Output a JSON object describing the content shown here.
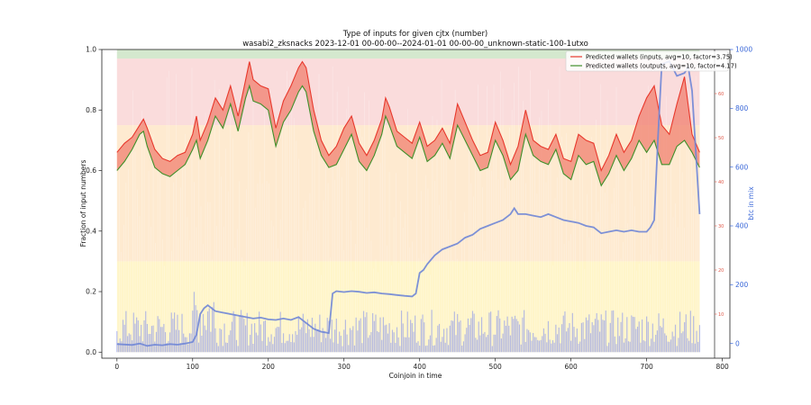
{
  "chart_data": {
    "type": "line",
    "title": "Type of inputs for given cjtx (number)",
    "subtitle": "wasabi2_zksnacks 2023-12-01 00-00-00--2024-01-01 00-00-00_unknown-static-100-1utxo",
    "xlabel": "Coinjoin in time",
    "ylabel": "Fraction of input numbers",
    "y2label": "btc in mix",
    "xlim": [
      -20,
      810
    ],
    "ylim": [
      -0.02,
      1.0
    ],
    "y2lim": [
      -50,
      1000
    ],
    "midlim": [
      0,
      70
    ],
    "x_ticks": [
      0,
      100,
      200,
      300,
      400,
      500,
      600,
      700,
      800
    ],
    "y_ticks": [
      0.0,
      0.2,
      0.4,
      0.6,
      0.8,
      1.0
    ],
    "y2_ticks": [
      0,
      200,
      400,
      600,
      800,
      1000
    ],
    "mid_ticks": [
      10,
      20,
      30,
      40,
      50,
      60
    ],
    "grid": false,
    "legend_position": "top-right",
    "series": [
      {
        "name": "Predicted wallets (inputs, avg=10, factor=3.75)",
        "color": "#e8382c",
        "axis": "left",
        "x": [
          0,
          10,
          20,
          30,
          35,
          40,
          50,
          60,
          70,
          80,
          90,
          100,
          105,
          110,
          120,
          130,
          140,
          150,
          160,
          170,
          175,
          180,
          190,
          200,
          210,
          220,
          230,
          240,
          245,
          250,
          260,
          270,
          280,
          290,
          300,
          310,
          320,
          330,
          340,
          350,
          355,
          360,
          370,
          380,
          390,
          400,
          410,
          420,
          430,
          440,
          450,
          460,
          470,
          480,
          490,
          500,
          510,
          520,
          530,
          540,
          550,
          560,
          570,
          580,
          590,
          600,
          610,
          620,
          630,
          640,
          650,
          660,
          670,
          680,
          690,
          700,
          710,
          720,
          730,
          740,
          750,
          760,
          770
        ],
        "values": [
          0.66,
          0.69,
          0.71,
          0.75,
          0.77,
          0.74,
          0.67,
          0.64,
          0.63,
          0.65,
          0.66,
          0.72,
          0.78,
          0.7,
          0.76,
          0.84,
          0.8,
          0.88,
          0.78,
          0.9,
          0.96,
          0.9,
          0.88,
          0.87,
          0.74,
          0.83,
          0.88,
          0.94,
          0.96,
          0.94,
          0.8,
          0.7,
          0.65,
          0.68,
          0.74,
          0.78,
          0.69,
          0.65,
          0.7,
          0.77,
          0.84,
          0.81,
          0.73,
          0.71,
          0.69,
          0.76,
          0.68,
          0.7,
          0.74,
          0.69,
          0.82,
          0.76,
          0.7,
          0.65,
          0.66,
          0.76,
          0.7,
          0.62,
          0.68,
          0.8,
          0.7,
          0.68,
          0.67,
          0.72,
          0.64,
          0.63,
          0.72,
          0.7,
          0.69,
          0.6,
          0.65,
          0.72,
          0.66,
          0.7,
          0.78,
          0.84,
          0.88,
          0.75,
          0.72,
          0.82,
          0.91,
          0.72,
          0.66
        ]
      },
      {
        "name": "Predicted wallets (outputs, avg=10, factor=4.17)",
        "color": "#3f8f2a",
        "axis": "left",
        "x": [
          0,
          10,
          20,
          30,
          35,
          40,
          50,
          60,
          70,
          80,
          90,
          100,
          105,
          110,
          120,
          130,
          140,
          150,
          160,
          170,
          175,
          180,
          190,
          200,
          210,
          220,
          230,
          240,
          245,
          250,
          260,
          270,
          280,
          290,
          300,
          310,
          320,
          330,
          340,
          350,
          355,
          360,
          370,
          380,
          390,
          400,
          410,
          420,
          430,
          440,
          450,
          460,
          470,
          480,
          490,
          500,
          510,
          520,
          530,
          540,
          550,
          560,
          570,
          580,
          590,
          600,
          610,
          620,
          630,
          640,
          650,
          660,
          670,
          680,
          690,
          700,
          710,
          720,
          730,
          740,
          750,
          760,
          770
        ],
        "values": [
          0.6,
          0.63,
          0.67,
          0.72,
          0.73,
          0.68,
          0.61,
          0.59,
          0.58,
          0.6,
          0.62,
          0.67,
          0.7,
          0.64,
          0.7,
          0.78,
          0.74,
          0.82,
          0.73,
          0.84,
          0.88,
          0.83,
          0.82,
          0.8,
          0.68,
          0.76,
          0.8,
          0.86,
          0.88,
          0.86,
          0.73,
          0.65,
          0.61,
          0.62,
          0.67,
          0.72,
          0.63,
          0.6,
          0.65,
          0.72,
          0.78,
          0.75,
          0.68,
          0.66,
          0.64,
          0.71,
          0.63,
          0.65,
          0.69,
          0.64,
          0.75,
          0.7,
          0.65,
          0.6,
          0.61,
          0.7,
          0.65,
          0.57,
          0.6,
          0.72,
          0.65,
          0.63,
          0.62,
          0.67,
          0.59,
          0.57,
          0.65,
          0.62,
          0.63,
          0.55,
          0.59,
          0.65,
          0.6,
          0.64,
          0.7,
          0.66,
          0.7,
          0.62,
          0.62,
          0.68,
          0.7,
          0.66,
          0.61
        ]
      },
      {
        "name": "btc in mix",
        "color": "#6f86d6",
        "axis": "right",
        "x": [
          0,
          20,
          30,
          40,
          50,
          60,
          70,
          80,
          90,
          100,
          105,
          110,
          115,
          120,
          130,
          140,
          150,
          160,
          170,
          180,
          190,
          200,
          210,
          220,
          230,
          240,
          250,
          260,
          270,
          275,
          280,
          285,
          290,
          300,
          310,
          320,
          330,
          340,
          350,
          360,
          370,
          380,
          390,
          395,
          400,
          405,
          410,
          420,
          430,
          440,
          450,
          460,
          470,
          480,
          490,
          500,
          510,
          520,
          525,
          530,
          540,
          550,
          560,
          570,
          580,
          590,
          600,
          610,
          620,
          630,
          640,
          650,
          660,
          670,
          680,
          690,
          700,
          705,
          710,
          715,
          720,
          730,
          740,
          750,
          755,
          760,
          765,
          770
        ],
        "values": [
          -2,
          -5,
          0,
          -8,
          -4,
          -6,
          -2,
          -4,
          0,
          5,
          30,
          100,
          120,
          130,
          110,
          105,
          100,
          95,
          90,
          85,
          88,
          82,
          80,
          85,
          80,
          90,
          70,
          50,
          40,
          38,
          35,
          170,
          178,
          175,
          178,
          176,
          172,
          174,
          170,
          168,
          165,
          162,
          160,
          170,
          240,
          250,
          270,
          300,
          320,
          330,
          340,
          360,
          370,
          390,
          400,
          410,
          420,
          440,
          460,
          440,
          440,
          435,
          430,
          440,
          430,
          420,
          415,
          410,
          400,
          395,
          375,
          380,
          385,
          380,
          385,
          380,
          380,
          395,
          420,
          700,
          950,
          960,
          910,
          920,
          940,
          860,
          650,
          440
        ]
      }
    ]
  }
}
